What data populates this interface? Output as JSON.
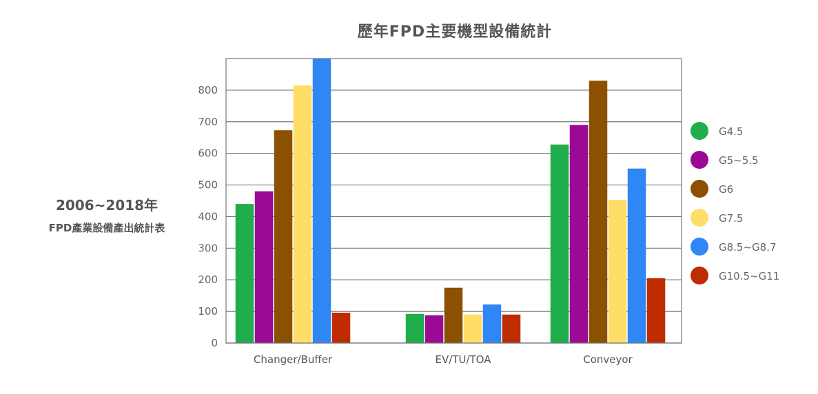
{
  "chart_data": {
    "type": "bar",
    "title": "歷年FPD主要機型設備統計",
    "ylabel_line1": "2006~2018年",
    "ylabel_line2": "FPD產業設備產出統計表",
    "xlabel": "",
    "ylim": [
      0,
      900
    ],
    "yticks": [
      0,
      100,
      200,
      300,
      400,
      500,
      600,
      700,
      800
    ],
    "grid": true,
    "legend_position": "right",
    "categories": [
      "Changer/Buffer",
      "EV/TU/TOA",
      "Conveyor"
    ],
    "series": [
      {
        "name": "G4.5",
        "color": "#1fae4b",
        "values": [
          440,
          92,
          628
        ]
      },
      {
        "name": "G5~5.5",
        "color": "#9a0a95",
        "values": [
          480,
          88,
          690
        ]
      },
      {
        "name": "G6",
        "color": "#8b5000",
        "values": [
          673,
          175,
          830
        ]
      },
      {
        "name": "G7.5",
        "color": "#ffde68",
        "values": [
          815,
          90,
          453
        ]
      },
      {
        "name": "G8.5~G8.7",
        "color": "#2f86f5",
        "values": [
          900,
          122,
          552
        ]
      },
      {
        "name": "G10.5~G11",
        "color": "#bf2c00",
        "values": [
          96,
          90,
          205
        ]
      }
    ]
  }
}
